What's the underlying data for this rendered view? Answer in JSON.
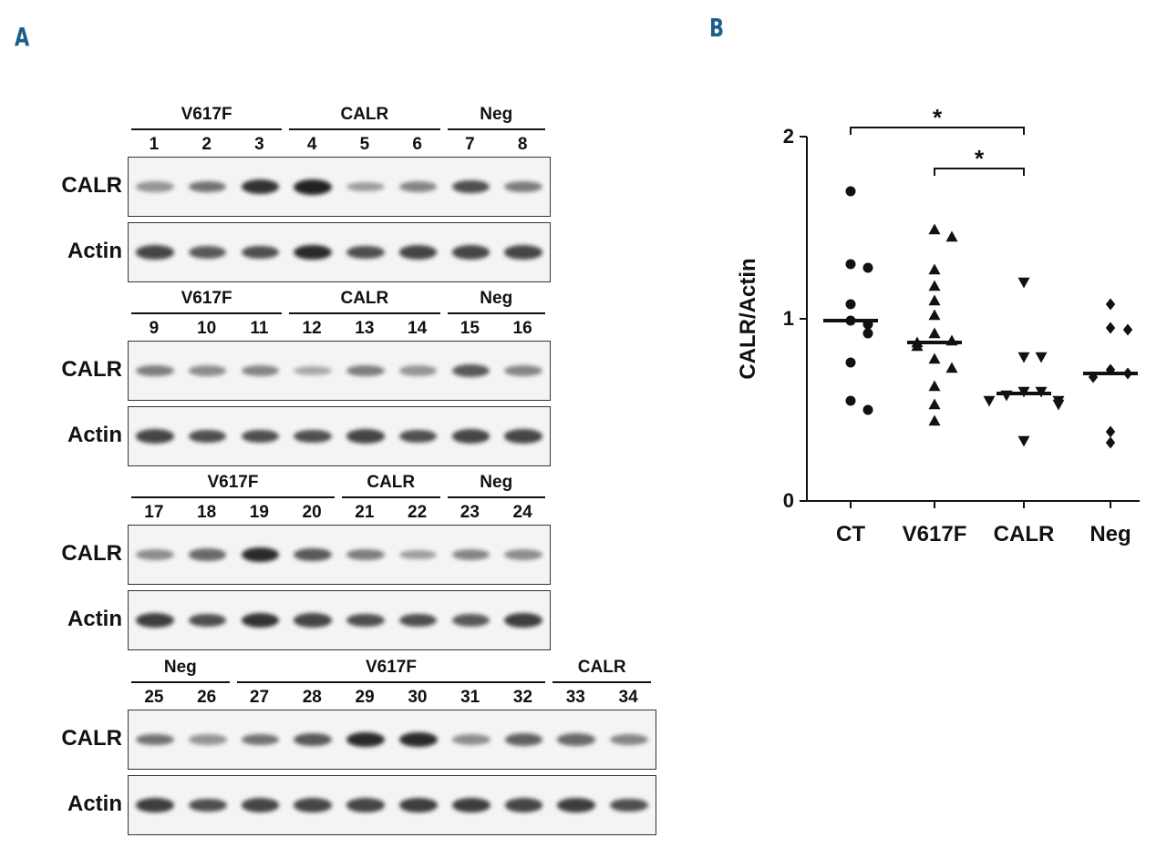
{
  "panels": {
    "a_letter": "A",
    "b_letter": "B"
  },
  "western_blot": {
    "row_labels": {
      "calr": "CALR",
      "actin": "Actin"
    },
    "sets": [
      {
        "groups": [
          {
            "label": "V617F",
            "lanes": [
              "1",
              "2",
              "3"
            ]
          },
          {
            "label": "CALR",
            "lanes": [
              "4",
              "5",
              "6"
            ]
          },
          {
            "label": "Neg",
            "lanes": [
              "7",
              "8"
            ]
          }
        ],
        "calr_intensity": [
          0.35,
          0.55,
          0.9,
          1.0,
          0.3,
          0.45,
          0.75,
          0.5
        ],
        "actin_intensity": [
          0.8,
          0.7,
          0.75,
          0.95,
          0.75,
          0.8,
          0.8,
          0.8
        ]
      },
      {
        "groups": [
          {
            "label": "V617F",
            "lanes": [
              "9",
              "10",
              "11"
            ]
          },
          {
            "label": "CALR",
            "lanes": [
              "12",
              "13",
              "14"
            ]
          },
          {
            "label": "Neg",
            "lanes": [
              "15",
              "16"
            ]
          }
        ],
        "calr_intensity": [
          0.5,
          0.4,
          0.45,
          0.25,
          0.5,
          0.35,
          0.7,
          0.45
        ],
        "actin_intensity": [
          0.8,
          0.75,
          0.75,
          0.75,
          0.8,
          0.75,
          0.8,
          0.8
        ]
      },
      {
        "groups": [
          {
            "label": "V617F",
            "lanes": [
              "17",
              "18",
              "19",
              "20"
            ]
          },
          {
            "label": "CALR",
            "lanes": [
              "21",
              "22"
            ]
          },
          {
            "label": "Neg",
            "lanes": [
              "23",
              "24"
            ]
          }
        ],
        "calr_intensity": [
          0.4,
          0.6,
          0.95,
          0.7,
          0.5,
          0.3,
          0.45,
          0.4
        ],
        "actin_intensity": [
          0.85,
          0.75,
          0.9,
          0.8,
          0.75,
          0.75,
          0.7,
          0.85
        ]
      },
      {
        "groups": [
          {
            "label": "Neg",
            "lanes": [
              "25",
              "26"
            ]
          },
          {
            "label": "V617F",
            "lanes": [
              "27",
              "28",
              "29",
              "30",
              "31",
              "32"
            ]
          },
          {
            "label": "CALR",
            "lanes": [
              "33",
              "34"
            ]
          }
        ],
        "calr_intensity": [
          0.55,
          0.35,
          0.55,
          0.7,
          0.95,
          0.95,
          0.4,
          0.65,
          0.6,
          0.45
        ],
        "actin_intensity": [
          0.85,
          0.75,
          0.8,
          0.8,
          0.8,
          0.85,
          0.85,
          0.8,
          0.85,
          0.75
        ]
      }
    ]
  },
  "chart_data": {
    "type": "scatter",
    "title": "",
    "xlabel": "",
    "ylabel": "CALR/Actin",
    "categories": [
      "CT",
      "V617F",
      "CALR",
      "Neg"
    ],
    "ylim": [
      0,
      2
    ],
    "yticks": [
      "0",
      "1",
      "2"
    ],
    "series": [
      {
        "category": "CT",
        "marker": "circle",
        "values": [
          1.7,
          1.3,
          1.28,
          1.08,
          0.99,
          0.97,
          0.92,
          0.76,
          0.55,
          0.5
        ],
        "median": 0.99
      },
      {
        "category": "V617F",
        "marker": "triangle-up",
        "values": [
          1.49,
          1.45,
          1.27,
          1.18,
          1.1,
          1.02,
          0.92,
          0.88,
          0.87,
          0.85,
          0.78,
          0.73,
          0.63,
          0.53,
          0.44
        ],
        "median": 0.87
      },
      {
        "category": "CALR",
        "marker": "triangle-down",
        "values": [
          1.2,
          0.79,
          0.79,
          0.6,
          0.6,
          0.58,
          0.55,
          0.55,
          0.53,
          0.33
        ],
        "median": 0.59
      },
      {
        "category": "Neg",
        "marker": "diamond",
        "values": [
          1.08,
          0.95,
          0.94,
          0.72,
          0.7,
          0.68,
          0.38,
          0.32
        ],
        "median": 0.7
      }
    ],
    "significance": [
      {
        "from": "CT",
        "to": "CALR",
        "label": "*"
      },
      {
        "from": "V617F",
        "to": "CALR",
        "label": "*"
      }
    ]
  }
}
